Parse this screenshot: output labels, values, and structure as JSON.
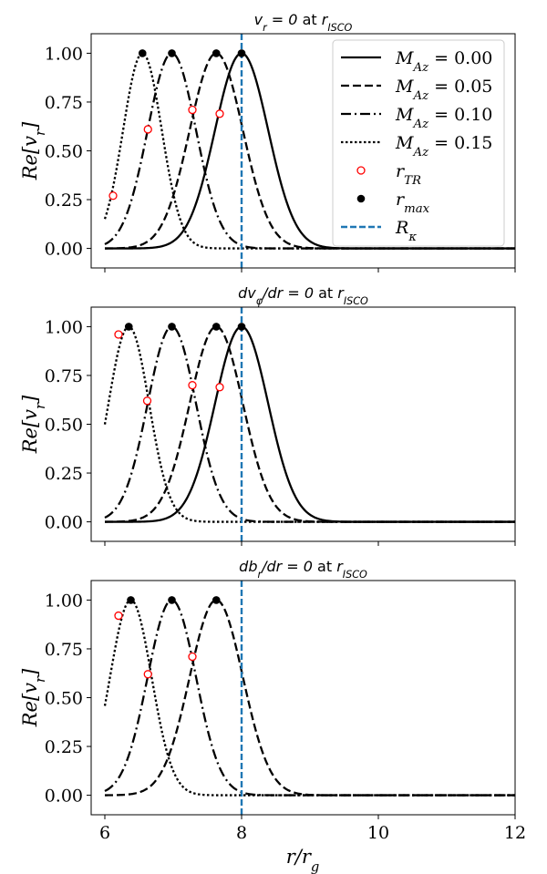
{
  "chart_data": [
    {
      "type": "line",
      "title": "v_r = 0 at r_ISCO",
      "title_math_pre": "v",
      "title_math_sub": "r",
      "title_mid": " = 0 at ",
      "title_sub_label": "r",
      "title_sub_sub": "ISCO",
      "ylabel": "Re[v_r]",
      "xlim": [
        5.8,
        12
      ],
      "ylim": [
        -0.1,
        1.1
      ],
      "yticks": [
        "0.00",
        "0.25",
        "0.50",
        "0.75",
        "1.00"
      ],
      "x_ticklabels_visible": false,
      "series": [
        {
          "name": "M_Az = 0.00",
          "style": "solid",
          "peak": 8.0,
          "width": 0.55,
          "r_max": [
            8.0,
            1.0
          ],
          "r_tr": null
        },
        {
          "name": "M_Az = 0.05",
          "style": "dashed",
          "peak": 7.63,
          "width": 0.55,
          "r_max": [
            7.63,
            1.0
          ],
          "r_tr": [
            7.68,
            0.69
          ]
        },
        {
          "name": "M_Az = 0.10",
          "style": "dashdot",
          "peak": 6.98,
          "width": 0.5,
          "r_max": [
            6.98,
            1.0
          ],
          "r_tr": [
            7.28,
            0.71
          ]
        },
        {
          "name": "M_Az = 0.15",
          "style": "dotted",
          "peak": 6.55,
          "width": 0.4,
          "r_max": [
            6.55,
            1.0
          ],
          "r_tr": [
            6.63,
            0.61
          ],
          "r_tr_extra": [
            6.12,
            0.27
          ]
        }
      ],
      "vline": {
        "name": "R_kappa",
        "x": 8.0
      }
    },
    {
      "type": "line",
      "title": "dv_phi/dr = 0 at r_ISCO",
      "ylabel": "Re[v_r]",
      "xlim": [
        5.8,
        12
      ],
      "ylim": [
        -0.1,
        1.1
      ],
      "yticks": [
        "0.00",
        "0.25",
        "0.50",
        "0.75",
        "1.00"
      ],
      "x_ticklabels_visible": false,
      "series": [
        {
          "name": "M_Az = 0.00",
          "style": "solid",
          "peak": 8.0,
          "width": 0.55,
          "r_max": [
            8.0,
            1.0
          ],
          "r_tr": null
        },
        {
          "name": "M_Az = 0.05",
          "style": "dashed",
          "peak": 7.63,
          "width": 0.55,
          "r_max": [
            7.63,
            1.0
          ],
          "r_tr": [
            7.68,
            0.69
          ]
        },
        {
          "name": "M_Az = 0.10",
          "style": "dashdot",
          "peak": 6.98,
          "width": 0.5,
          "r_max": [
            6.98,
            1.0
          ],
          "r_tr": [
            7.28,
            0.7
          ]
        },
        {
          "name": "M_Az = 0.15",
          "style": "dotted",
          "peak": 6.35,
          "width": 0.42,
          "r_max": [
            6.35,
            1.0
          ],
          "r_tr": [
            6.62,
            0.62
          ],
          "r_tr_extra": [
            6.2,
            0.96
          ]
        }
      ],
      "vline": {
        "name": "R_kappa",
        "x": 8.0
      }
    },
    {
      "type": "line",
      "title": "db_r/dr = 0 at r_ISCO",
      "ylabel": "Re[v_r]",
      "xlabel": "r/r_g",
      "xlim": [
        5.8,
        12
      ],
      "ylim": [
        -0.1,
        1.1
      ],
      "xticks": [
        "6",
        "8",
        "10",
        "12"
      ],
      "yticks": [
        "0.00",
        "0.25",
        "0.50",
        "0.75",
        "1.00"
      ],
      "x_ticklabels_visible": true,
      "series": [
        {
          "name": "M_Az = 0.05",
          "style": "dashed",
          "peak": 7.63,
          "width": 0.55,
          "r_max": [
            7.63,
            1.0
          ],
          "r_tr": [
            7.28,
            0.71
          ]
        },
        {
          "name": "M_Az = 0.10",
          "style": "dashdot",
          "peak": 6.98,
          "width": 0.5,
          "r_max": [
            6.98,
            1.0
          ],
          "r_tr": [
            6.63,
            0.62
          ]
        },
        {
          "name": "M_Az = 0.15",
          "style": "dotted",
          "peak": 6.38,
          "width": 0.43,
          "r_max": [
            6.38,
            1.0
          ],
          "r_tr": [
            6.2,
            0.92
          ]
        }
      ],
      "vline": {
        "name": "R_kappa",
        "x": 8.0
      }
    }
  ],
  "legend": {
    "placement": "top-right of first panel",
    "entries": [
      {
        "label_pre": "M",
        "label_sub": "Az",
        "label_post": " = 0.00",
        "style": "solid"
      },
      {
        "label_pre": "M",
        "label_sub": "Az",
        "label_post": " = 0.05",
        "style": "dashed"
      },
      {
        "label_pre": "M",
        "label_sub": "Az",
        "label_post": " = 0.10",
        "style": "dashdot"
      },
      {
        "label_pre": "M",
        "label_sub": "Az",
        "label_post": " = 0.15",
        "style": "dotted"
      },
      {
        "label_pre": "r",
        "label_sub": "TR",
        "label_post": "",
        "style": "open-circle"
      },
      {
        "label_pre": "r",
        "label_sub": "max",
        "label_post": "",
        "style": "filled-circle"
      },
      {
        "label_pre": "R",
        "label_sub": "κ",
        "label_post": "",
        "style": "vline"
      }
    ]
  },
  "titles": [
    {
      "pre": "v",
      "pre_sub": "r",
      "mid": " = 0 ",
      "word": "at",
      "post": " r",
      "post_sub": "ISCO"
    },
    {
      "pre": "dv",
      "pre_sub": "φ",
      "mid": "/dr = 0 ",
      "word": "at",
      "post": " r",
      "post_sub": "ISCO"
    },
    {
      "pre": "db",
      "pre_sub": "r",
      "mid": "/dr = 0 ",
      "word": "at",
      "post": " r",
      "post_sub": "ISCO"
    }
  ],
  "ylabel_text": {
    "pre": "Re[v",
    "sub": "r",
    "post": "]"
  },
  "xlabel_text": {
    "pre": "r/r",
    "sub": "g"
  },
  "colors": {
    "curve": "#000000",
    "vline": "#1f77b4",
    "tr_marker": "#ff0000",
    "frame": "#000000"
  }
}
